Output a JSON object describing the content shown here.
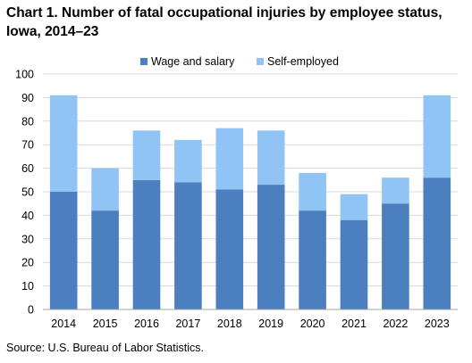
{
  "title_lines": [
    "Chart 1. Number of fatal occupational injuries by employee status,",
    "Iowa, 2014–23"
  ],
  "source": "Source: U.S. Bureau of Labor Statistics.",
  "colors": {
    "wage": "#4b7fbf",
    "self": "#8fc4f5",
    "grid": "#d9d9d9",
    "axis": "#a6a6a6"
  },
  "chart_data": {
    "type": "bar",
    "stacked": true,
    "categories": [
      "2014",
      "2015",
      "2016",
      "2017",
      "2018",
      "2019",
      "2020",
      "2021",
      "2022",
      "2023"
    ],
    "series": [
      {
        "name": "Wage and salary",
        "values": [
          50,
          42,
          55,
          54,
          51,
          53,
          42,
          38,
          45,
          56
        ]
      },
      {
        "name": "Self-employed",
        "values": [
          41,
          18,
          21,
          18,
          26,
          23,
          16,
          11,
          11,
          35
        ]
      }
    ],
    "ylim": [
      0,
      100
    ],
    "yticks": [
      0,
      10,
      20,
      30,
      40,
      50,
      60,
      70,
      80,
      90,
      100
    ],
    "xlabel": "",
    "ylabel": "",
    "grid": true,
    "legend": "top-center"
  }
}
